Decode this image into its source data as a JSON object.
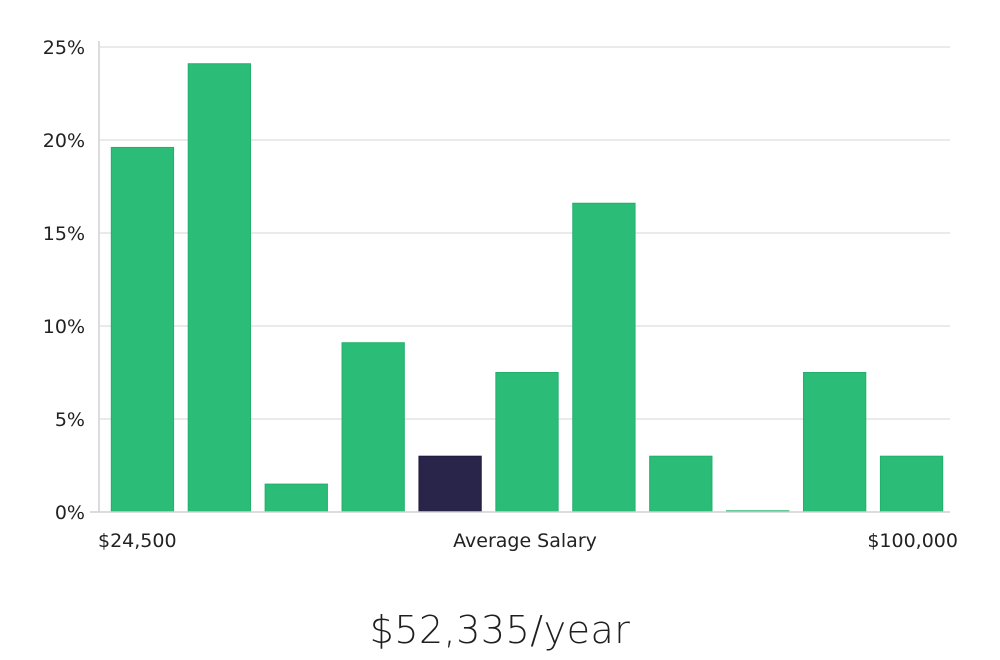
{
  "chart_data": {
    "type": "bar",
    "title": "",
    "xlabel": "Average Salary",
    "ylabel": "",
    "x_min_label": "$24,500",
    "x_max_label": "$100,000",
    "ylim": [
      0,
      25
    ],
    "yticks": [
      0,
      5,
      10,
      15,
      20,
      25
    ],
    "ytick_labels": [
      "0%",
      "5%",
      "10%",
      "15%",
      "20%",
      "25%"
    ],
    "values": [
      19.6,
      24.1,
      1.5,
      9.1,
      3.0,
      7.5,
      16.6,
      3.0,
      0.0,
      7.5,
      3.0
    ],
    "highlight_index": 4,
    "grid": true
  },
  "colors": {
    "bar": "#2bbd77",
    "bar_border": "#22b06c",
    "highlight": "#29244a",
    "grid": "#e3e3e3",
    "axis": "#d0d0d0"
  },
  "summary": {
    "average_salary": "$52,335/year"
  }
}
